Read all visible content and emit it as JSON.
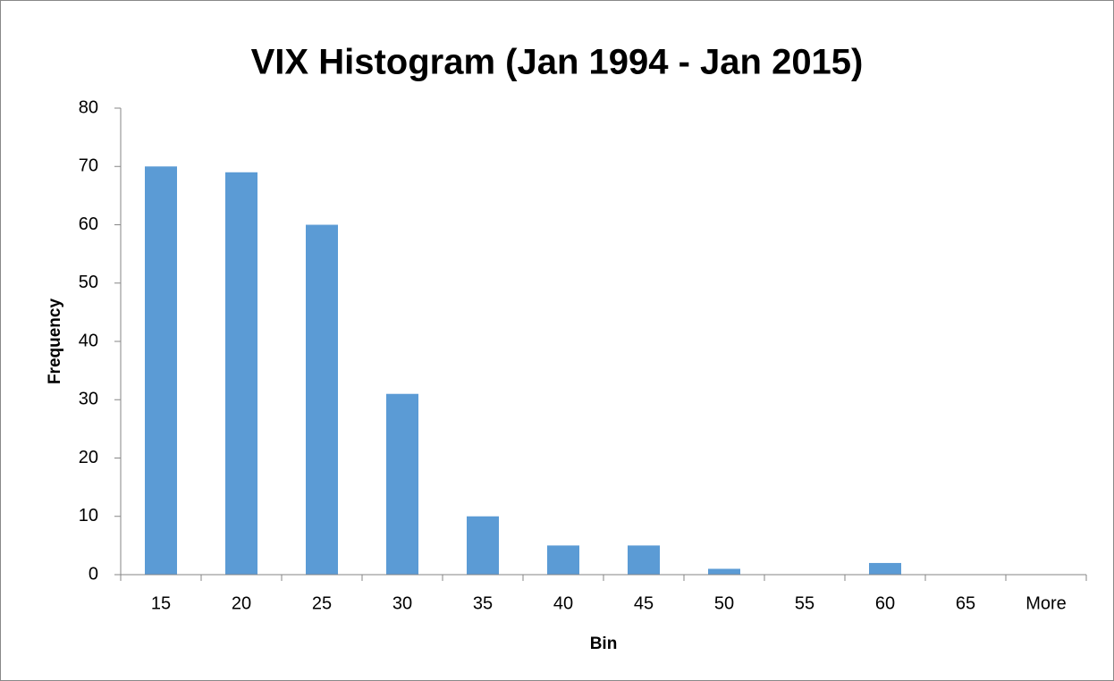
{
  "chart_data": {
    "type": "bar",
    "title": "VIX Histogram (Jan 1994 - Jan 2015)",
    "x_label": "Bin",
    "y_label": "Frequency",
    "categories": [
      "15",
      "20",
      "25",
      "30",
      "35",
      "40",
      "45",
      "50",
      "55",
      "60",
      "65",
      "More"
    ],
    "values": [
      70,
      69,
      60,
      31,
      10,
      5,
      5,
      1,
      0,
      2,
      0,
      0
    ],
    "color": "#5b9bd5",
    "ylim": [
      0,
      80
    ],
    "yticks": [
      0,
      10,
      20,
      30,
      40,
      50,
      60,
      70,
      80
    ],
    "grid": false
  }
}
